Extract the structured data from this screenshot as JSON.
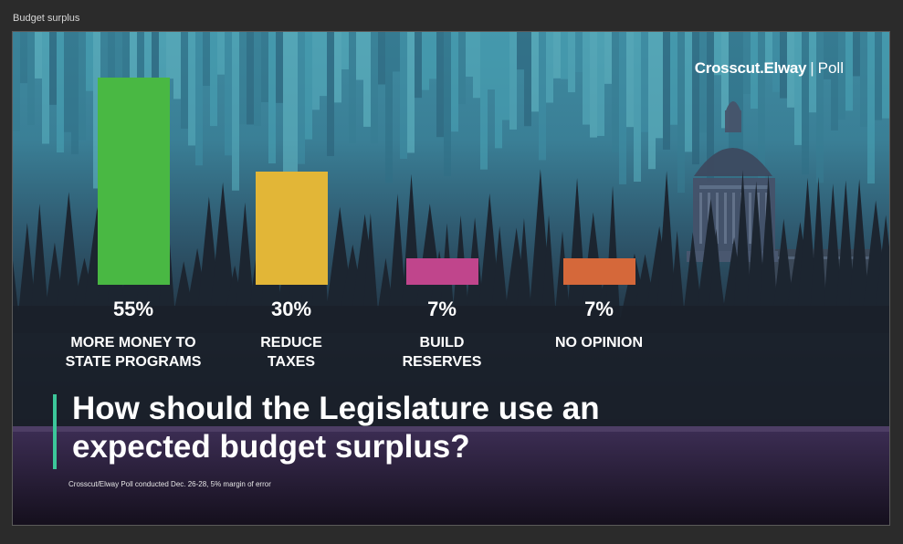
{
  "window": {
    "title": "Budget surplus"
  },
  "brand": {
    "name": "Crosscut",
    "dot": ".",
    "partner": "Elway",
    "separator": "|",
    "suffix": "Poll"
  },
  "question": "How should the Legislature use an expected budget surplus?",
  "footnote": "Crosscut/Elway Poll conducted Dec. 26-28, 5% margin of error",
  "chart_data": {
    "type": "bar",
    "categories": [
      "MORE MONEY TO STATE PROGRAMS",
      "REDUCE TAXES",
      "BUILD RESERVES",
      "NO OPINION"
    ],
    "values": [
      55,
      30,
      7,
      7
    ],
    "value_labels": [
      "55%",
      "30%",
      "7%",
      "7%"
    ],
    "colors": [
      "#49b843",
      "#e2b637",
      "#c0458c",
      "#d5683a"
    ],
    "title": "",
    "xlabel": "",
    "ylabel": "",
    "ylim": [
      0,
      55
    ],
    "grid": false,
    "legend": "none"
  }
}
